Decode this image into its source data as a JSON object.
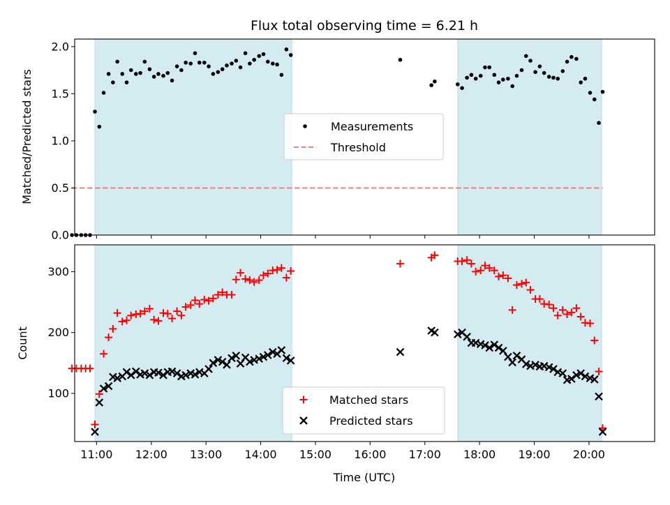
{
  "chart_data": {
    "title": "Flux total observing time = 6.21 h",
    "xlabel": "Time (UTC)",
    "x_unit": "hours UTC",
    "xlim": [
      10.6,
      21.2
    ],
    "xticks": [
      {
        "value": 11,
        "label": "11:00"
      },
      {
        "value": 12,
        "label": "12:00"
      },
      {
        "value": 13,
        "label": "13:00"
      },
      {
        "value": 14,
        "label": "14:00"
      },
      {
        "value": 15,
        "label": "15:00"
      },
      {
        "value": 16,
        "label": "16:00"
      },
      {
        "value": 17,
        "label": "17:00"
      },
      {
        "value": 18,
        "label": "18:00"
      },
      {
        "value": 19,
        "label": "19:00"
      },
      {
        "value": 20,
        "label": "20:00"
      }
    ],
    "shaded_intervals": [
      [
        10.97,
        14.57
      ],
      [
        17.6,
        20.23
      ]
    ],
    "shade_color": "#add8e6",
    "panels": [
      {
        "id": "ratio",
        "type": "scatter",
        "ylabel": "Matched/Predicted stars",
        "ylim": [
          0,
          2.08
        ],
        "yticks": [
          {
            "value": 0.0,
            "label": "0.0"
          },
          {
            "value": 0.5,
            "label": "0.5"
          },
          {
            "value": 1.0,
            "label": "1.0"
          },
          {
            "value": 1.5,
            "label": "1.5"
          },
          {
            "value": 2.0,
            "label": "2.0"
          }
        ],
        "legend": {
          "placement": "center-right",
          "entries": [
            {
              "label": "Measurements",
              "marker": "dot",
              "color": "#000000"
            },
            {
              "label": "Threshold",
              "marker": "dashed-line",
              "color": "#f08080"
            }
          ]
        },
        "threshold": {
          "value": 0.5,
          "x_start": 10.55,
          "x_end": 20.25,
          "color": "#f08080"
        },
        "series": [
          {
            "name": "Measurements",
            "marker": "dot",
            "color": "#000000",
            "x": [
              10.55,
              10.63,
              10.72,
              10.8,
              10.88,
              10.97,
              11.05,
              11.13,
              11.22,
              11.3,
              11.38,
              11.47,
              11.55,
              11.63,
              11.72,
              11.8,
              11.88,
              11.97,
              12.05,
              12.13,
              12.22,
              12.3,
              12.38,
              12.47,
              12.55,
              12.63,
              12.72,
              12.8,
              12.88,
              12.97,
              13.05,
              13.13,
              13.22,
              13.3,
              13.38,
              13.47,
              13.55,
              13.63,
              13.72,
              13.8,
              13.88,
              13.97,
              14.05,
              14.13,
              14.22,
              14.3,
              14.38,
              14.47,
              14.55,
              16.55,
              17.12,
              17.18,
              17.6,
              17.68,
              17.77,
              17.85,
              17.93,
              18.02,
              18.1,
              18.18,
              18.27,
              18.35,
              18.43,
              18.52,
              18.6,
              18.68,
              18.77,
              18.85,
              18.93,
              19.02,
              19.1,
              19.18,
              19.27,
              19.35,
              19.43,
              19.52,
              19.6,
              19.68,
              19.77,
              19.85,
              19.93,
              20.02,
              20.1,
              20.18,
              20.25
            ],
            "y": [
              0.0,
              0.0,
              0.0,
              0.0,
              0.0,
              1.31,
              1.15,
              1.51,
              1.71,
              1.62,
              1.84,
              1.71,
              1.62,
              1.75,
              1.71,
              1.72,
              1.84,
              1.76,
              1.68,
              1.71,
              1.69,
              1.72,
              1.64,
              1.79,
              1.75,
              1.83,
              1.82,
              1.93,
              1.83,
              1.83,
              1.79,
              1.71,
              1.73,
              1.76,
              1.8,
              1.82,
              1.85,
              1.78,
              1.93,
              1.82,
              1.86,
              1.9,
              1.92,
              1.84,
              1.82,
              1.81,
              1.7,
              1.97,
              1.91,
              1.86,
              1.59,
              1.63,
              1.6,
              1.56,
              1.67,
              1.7,
              1.66,
              1.69,
              1.78,
              1.78,
              1.7,
              1.62,
              1.65,
              1.66,
              1.58,
              1.69,
              1.75,
              1.9,
              1.85,
              1.73,
              1.79,
              1.72,
              1.68,
              1.67,
              1.66,
              1.74,
              1.84,
              1.89,
              1.87,
              1.62,
              1.66,
              1.51,
              1.44,
              1.19,
              1.52
            ]
          }
        ]
      },
      {
        "id": "counts",
        "type": "scatter",
        "ylabel": "Count",
        "ylim": [
          21,
          344
        ],
        "yticks": [
          {
            "value": 100,
            "label": "100"
          },
          {
            "value": 200,
            "label": "200"
          },
          {
            "value": 300,
            "label": "300"
          }
        ],
        "legend": {
          "placement": "lower-center",
          "entries": [
            {
              "label": "Matched stars",
              "marker": "plus",
              "color": "#ff0000"
            },
            {
              "label": "Predicted stars",
              "marker": "x",
              "color": "#000000"
            }
          ]
        },
        "series": [
          {
            "name": "Matched stars",
            "marker": "plus",
            "color": "#ff0000",
            "x": [
              10.55,
              10.63,
              10.72,
              10.8,
              10.88,
              10.97,
              11.05,
              11.13,
              11.22,
              11.3,
              11.38,
              11.47,
              11.55,
              11.63,
              11.72,
              11.8,
              11.88,
              11.97,
              12.05,
              12.13,
              12.22,
              12.3,
              12.38,
              12.47,
              12.55,
              12.63,
              12.72,
              12.8,
              12.88,
              12.97,
              13.05,
              13.13,
              13.22,
              13.3,
              13.38,
              13.47,
              13.55,
              13.63,
              13.72,
              13.8,
              13.88,
              13.97,
              14.05,
              14.13,
              14.22,
              14.3,
              14.38,
              14.47,
              14.55,
              16.55,
              17.12,
              17.18,
              17.6,
              17.68,
              17.77,
              17.85,
              17.93,
              18.02,
              18.1,
              18.18,
              18.27,
              18.35,
              18.43,
              18.52,
              18.6,
              18.68,
              18.77,
              18.85,
              18.93,
              19.02,
              19.1,
              19.18,
              19.27,
              19.35,
              19.43,
              19.52,
              19.6,
              19.68,
              19.77,
              19.85,
              19.93,
              20.02,
              20.1,
              20.18,
              20.25
            ],
            "y": [
              141,
              141,
              141,
              141,
              141,
              49,
              99,
              165,
              192,
              206,
              232,
              218,
              220,
              228,
              230,
              231,
              235,
              239,
              221,
              219,
              232,
              231,
              223,
              235,
              228,
              242,
              245,
              253,
              247,
              254,
              252,
              256,
              262,
              266,
              262,
              262,
              287,
              298,
              288,
              286,
              283,
              286,
              294,
              297,
              302,
              303,
              306,
              290,
              301,
              313,
              323,
              327,
              317,
              317,
              319,
              313,
              300,
              302,
              310,
              306,
              302,
              292,
              294,
              289,
              237,
              278,
              280,
              282,
              270,
              255,
              255,
              247,
              246,
              240,
              228,
              237,
              230,
              233,
              240,
              226,
              216,
              215,
              187,
              136,
              43
            ]
          },
          {
            "name": "Predicted stars",
            "marker": "x",
            "color": "#000000",
            "x": [
              10.97,
              11.05,
              11.13,
              11.22,
              11.3,
              11.38,
              11.47,
              11.55,
              11.63,
              11.72,
              11.8,
              11.88,
              11.97,
              12.05,
              12.13,
              12.22,
              12.3,
              12.38,
              12.47,
              12.55,
              12.63,
              12.72,
              12.8,
              12.88,
              12.97,
              13.05,
              13.13,
              13.22,
              13.3,
              13.38,
              13.47,
              13.55,
              13.63,
              13.72,
              13.8,
              13.88,
              13.97,
              14.05,
              14.13,
              14.22,
              14.3,
              14.38,
              14.47,
              14.55,
              16.55,
              17.12,
              17.18,
              17.6,
              17.68,
              17.77,
              17.85,
              17.93,
              18.02,
              18.1,
              18.18,
              18.27,
              18.35,
              18.43,
              18.52,
              18.6,
              18.68,
              18.77,
              18.85,
              18.93,
              19.02,
              19.1,
              19.18,
              19.27,
              19.35,
              19.43,
              19.52,
              19.6,
              19.68,
              19.77,
              19.85,
              19.93,
              20.02,
              20.1,
              20.18,
              20.25
            ],
            "y": [
              37,
              85,
              108,
              112,
              127,
              125,
              128,
              135,
              130,
              136,
              131,
              133,
              130,
              135,
              134,
              130,
              135,
              136,
              133,
              128,
              130,
              133,
              131,
              135,
              133,
              140,
              150,
              155,
              152,
              147,
              158,
              162,
              149,
              159,
              152,
              155,
              157,
              160,
              163,
              168,
              165,
              171,
              158,
              154,
              168,
              203,
              200,
              197,
              200,
              193,
              183,
              183,
              181,
              179,
              175,
              180,
              175,
              170,
              160,
              151,
              162,
              156,
              148,
              145,
              147,
              144,
              145,
              143,
              140,
              135,
              133,
              122,
              124,
              130,
              133,
              128,
              125,
              123,
              95,
              37
            ]
          }
        ]
      }
    ]
  }
}
